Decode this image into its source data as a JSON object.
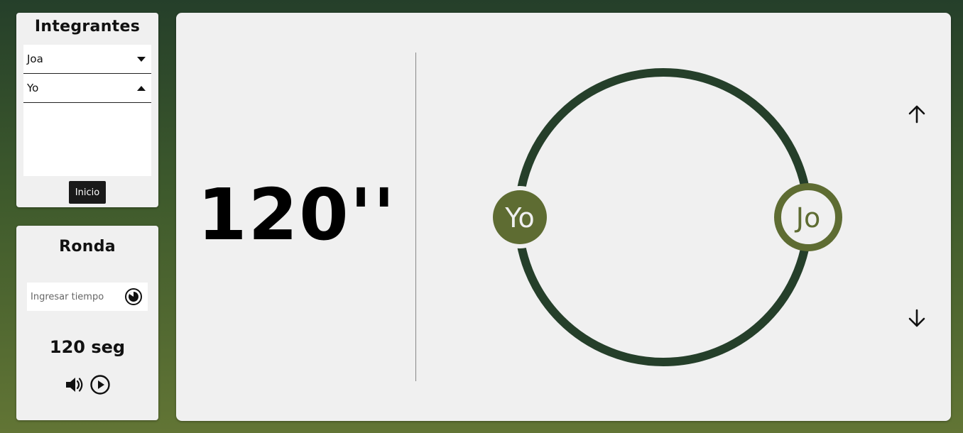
{
  "members_panel": {
    "title": "Integrantes",
    "members": [
      {
        "name": "Joa",
        "toggle": "chevron-down-icon"
      },
      {
        "name": "Yo",
        "toggle": "chevron-up-icon"
      }
    ],
    "start_label": "Inicio"
  },
  "round_panel": {
    "title": "Ronda",
    "time_input": {
      "placeholder": "Ingresar tiempo",
      "value": "",
      "icon": "timer-icon"
    },
    "seconds_label": "120 seg",
    "controls": [
      {
        "name": "volume-icon"
      },
      {
        "name": "play-icon"
      }
    ]
  },
  "main": {
    "timer_display": "120''",
    "participants": [
      {
        "initials": "Yo",
        "style": "filled"
      },
      {
        "initials": "Jo",
        "style": "outlined"
      }
    ],
    "nav": {
      "up": "arrow-up-icon",
      "down": "arrow-down-icon"
    }
  },
  "colors": {
    "ring": "#253f2a",
    "avatar": "#5e6c32",
    "panel_bg": "#f0f0f0",
    "background_top": "#253f2a",
    "background_bottom": "#627535"
  }
}
